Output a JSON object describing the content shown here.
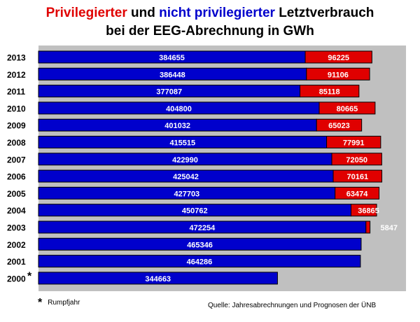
{
  "title": {
    "part1": "Privilegierter",
    "part2": " und ",
    "part3": "nicht privilegierter",
    "part4": " Letztverbrauch",
    "line2": "bei der EEG-Abrechnung in GWh"
  },
  "footnote": {
    "symbol": "*",
    "text": "Rumpfjahr"
  },
  "source": "Quelle: Jahresabrechnungen und Prognosen der ÜNB",
  "colors": {
    "privileged": "#e00000",
    "non_privileged": "#0000cc",
    "plot_background": "#c0c0c0"
  },
  "chart_data": {
    "type": "bar",
    "orientation": "horizontal",
    "stacked": true,
    "unit": "GWh",
    "categories": [
      "2013",
      "2012",
      "2011",
      "2010",
      "2009",
      "2008",
      "2007",
      "2006",
      "2005",
      "2004",
      "2003",
      "2002",
      "2001",
      "2000"
    ],
    "category_marks": {
      "2000": "*"
    },
    "series": [
      {
        "values": [
          384655,
          386448,
          377087,
          404800,
          401032,
          415515,
          422990,
          425042,
          427703,
          450762,
          472254,
          465346,
          464286,
          344663
        ]
      },
      {
        "values": [
          96225,
          91106,
          85118,
          80665,
          65023,
          77991,
          72050,
          70161,
          63474,
          36865,
          5847,
          null,
          null,
          null
        ]
      }
    ],
    "xlim": [
      0,
      530000
    ],
    "grid": false,
    "legend": "none"
  }
}
